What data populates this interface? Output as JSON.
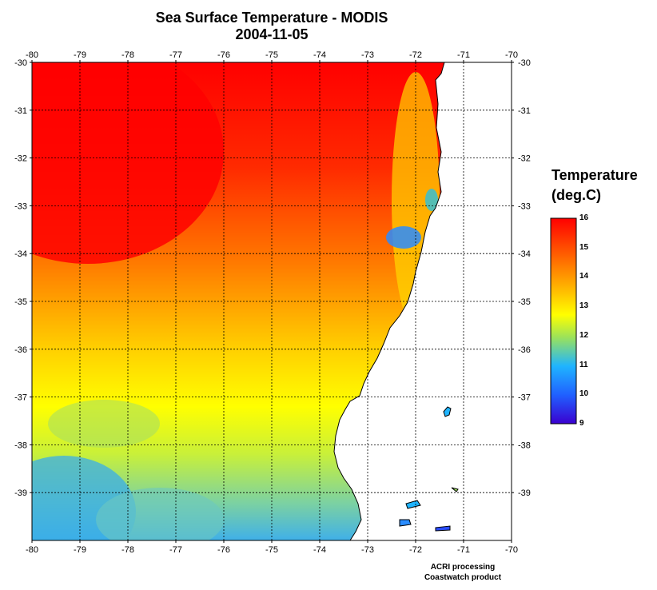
{
  "title": "Sea Surface Temperature - MODIS",
  "date": "2004-11-05",
  "map": {
    "lon_range": [
      -80,
      -70
    ],
    "lat_range": [
      -40,
      -30
    ],
    "lon_ticks": [
      "-80",
      "-79",
      "-78",
      "-77",
      "-76",
      "-75",
      "-74",
      "-73",
      "-72",
      "-71",
      "-70"
    ],
    "lat_ticks": [
      "-30",
      "-31",
      "-32",
      "-33",
      "-34",
      "-35",
      "-36",
      "-37",
      "-38",
      "-39"
    ],
    "grid": "dotted",
    "land_color": "#ffffff",
    "coastline_color": "#000000"
  },
  "legend": {
    "title_line1": "Temperature",
    "title_line2": "(deg.C)",
    "min": 9,
    "max": 16,
    "labels": [
      "16",
      "15",
      "14",
      "13",
      "12",
      "11",
      "10",
      "9"
    ],
    "colors": [
      "#ff0000",
      "#ff7a00",
      "#ffd000",
      "#ffff00",
      "#9be25a",
      "#1fb4ff",
      "#2060ff",
      "#3a00d0"
    ]
  },
  "credit": {
    "line1": "ACRI processing",
    "line2": "Coastwatch product"
  }
}
